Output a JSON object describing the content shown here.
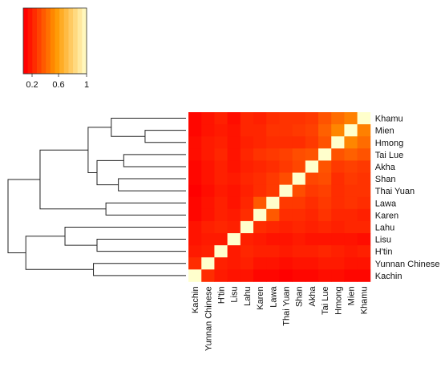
{
  "chart_data": {
    "type": "heatmap",
    "title": "",
    "row_labels": [
      "Khamu",
      "Mien",
      "Hmong",
      "Tai Lue",
      "Akha",
      "Shan",
      "Thai Yuan",
      "Lawa",
      "Karen",
      "Lahu",
      "Lisu",
      "H'tin",
      "Yunnan Chinese",
      "Kachin"
    ],
    "col_labels": [
      "Kachin",
      "Yunnan Chinese",
      "H'tin",
      "Lisu",
      "Lahu",
      "Karen",
      "Lawa",
      "Thai Yuan",
      "Shan",
      "Akha",
      "Tai Lue",
      "Hmong",
      "Mien",
      "Khamu"
    ],
    "values": [
      [
        0.06,
        0.1,
        0.14,
        0.08,
        0.16,
        0.14,
        0.18,
        0.2,
        0.2,
        0.22,
        0.3,
        0.38,
        0.44,
        1.0
      ],
      [
        0.06,
        0.1,
        0.12,
        0.1,
        0.16,
        0.16,
        0.2,
        0.2,
        0.22,
        0.24,
        0.34,
        0.46,
        1.0,
        0.44
      ],
      [
        0.08,
        0.12,
        0.14,
        0.1,
        0.14,
        0.16,
        0.18,
        0.18,
        0.18,
        0.22,
        0.3,
        1.0,
        0.46,
        0.38
      ],
      [
        0.08,
        0.12,
        0.16,
        0.1,
        0.16,
        0.2,
        0.22,
        0.24,
        0.28,
        0.3,
        1.0,
        0.3,
        0.34,
        0.3
      ],
      [
        0.06,
        0.1,
        0.14,
        0.1,
        0.14,
        0.16,
        0.18,
        0.22,
        0.26,
        1.0,
        0.3,
        0.22,
        0.24,
        0.22
      ],
      [
        0.06,
        0.1,
        0.14,
        0.12,
        0.16,
        0.18,
        0.22,
        0.28,
        1.0,
        0.26,
        0.28,
        0.18,
        0.22,
        0.2
      ],
      [
        0.04,
        0.08,
        0.12,
        0.1,
        0.14,
        0.18,
        0.22,
        1.0,
        0.28,
        0.22,
        0.24,
        0.18,
        0.2,
        0.2
      ],
      [
        0.06,
        0.1,
        0.14,
        0.1,
        0.16,
        0.32,
        1.0,
        0.22,
        0.22,
        0.18,
        0.22,
        0.18,
        0.2,
        0.18
      ],
      [
        0.06,
        0.1,
        0.14,
        0.12,
        0.18,
        1.0,
        0.32,
        0.18,
        0.18,
        0.16,
        0.2,
        0.16,
        0.16,
        0.14
      ],
      [
        0.1,
        0.14,
        0.16,
        0.14,
        1.0,
        0.18,
        0.16,
        0.14,
        0.16,
        0.14,
        0.16,
        0.14,
        0.16,
        0.16
      ],
      [
        0.1,
        0.12,
        0.12,
        1.0,
        0.14,
        0.12,
        0.1,
        0.1,
        0.12,
        0.1,
        0.1,
        0.1,
        0.1,
        0.08
      ],
      [
        0.12,
        0.14,
        1.0,
        0.12,
        0.16,
        0.14,
        0.14,
        0.12,
        0.14,
        0.14,
        0.16,
        0.14,
        0.12,
        0.14
      ],
      [
        0.18,
        1.0,
        0.14,
        0.12,
        0.14,
        0.1,
        0.1,
        0.08,
        0.1,
        0.1,
        0.12,
        0.12,
        0.1,
        0.1
      ],
      [
        1.0,
        0.18,
        0.12,
        0.1,
        0.1,
        0.06,
        0.06,
        0.04,
        0.06,
        0.06,
        0.08,
        0.08,
        0.06,
        0.06
      ]
    ],
    "color_scale": {
      "low": "#ff0000",
      "mid": "#ff9900",
      "high": "#ffffcc",
      "range": [
        0.04,
        1.0
      ],
      "ticks": [
        "0.2",
        "0.6",
        "1"
      ]
    },
    "dendrogram": "rows",
    "legend_placement": "top-left",
    "grid": false
  }
}
